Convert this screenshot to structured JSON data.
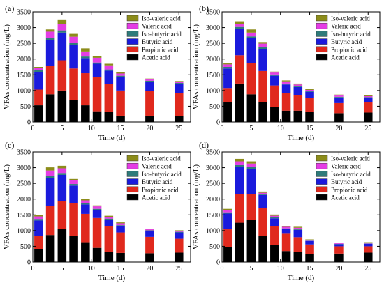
{
  "panels": [
    {
      "label": "(a)",
      "ylabel": "VFAs concentration (mg/L)",
      "xlabel": "Time (d)",
      "xticks": [
        "0",
        "5",
        "10",
        "15",
        "20",
        "25"
      ],
      "yticks": [
        "0",
        "500",
        "1000",
        "1500",
        "2000",
        "2500",
        "3000",
        "3500"
      ]
    },
    {
      "label": "(b)",
      "ylabel": "VFAs concentration (mg/L)",
      "xlabel": "Time (d)",
      "xticks": [
        "0",
        "5",
        "10",
        "15",
        "20",
        "25"
      ],
      "yticks": [
        "0",
        "500",
        "1000",
        "1500",
        "2000",
        "2500",
        "3000",
        "3500"
      ]
    },
    {
      "label": "(c)",
      "ylabel": "VFAs concentration (mg/L)",
      "xlabel": "Time (d)",
      "xticks": [
        "0",
        "5",
        "10",
        "15",
        "20",
        "25"
      ],
      "yticks": [
        "0",
        "500",
        "1000",
        "1500",
        "2000",
        "2500",
        "3000",
        "3500"
      ]
    },
    {
      "label": "(d)",
      "ylabel": "VFAs concentration (mg/L)",
      "xlabel": "Time (d)",
      "xticks": [
        "0",
        "5",
        "10",
        "15",
        "20",
        "25"
      ],
      "yticks": [
        "0",
        "500",
        "1000",
        "1500",
        "2000",
        "2500",
        "3000",
        "3500"
      ]
    }
  ],
  "chart_data": [
    {
      "type": "bar",
      "stacked": true,
      "xlim": [
        0,
        27
      ],
      "ylim": [
        0,
        3500
      ],
      "x": [
        1,
        3,
        5,
        7,
        9,
        11,
        13,
        15,
        20,
        25
      ],
      "series": [
        {
          "name": "Acetic acid",
          "color": "#000000",
          "values": [
            530,
            880,
            1000,
            700,
            530,
            340,
            330,
            200,
            200,
            190
          ]
        },
        {
          "name": "Propionic acid",
          "color": "#e0291d",
          "values": [
            500,
            900,
            960,
            1000,
            1020,
            1080,
            870,
            800,
            780,
            730
          ]
        },
        {
          "name": "Butyric acid",
          "color": "#1a1adc",
          "values": [
            560,
            820,
            880,
            750,
            480,
            430,
            430,
            430,
            300,
            290
          ]
        },
        {
          "name": "Iso-butyric acid",
          "color": "#2f7a7a",
          "values": [
            50,
            70,
            70,
            60,
            50,
            40,
            40,
            40,
            30,
            30
          ]
        },
        {
          "name": "Valeric acid",
          "color": "#e43de4",
          "values": [
            70,
            200,
            200,
            200,
            160,
            150,
            130,
            70,
            40,
            30
          ]
        },
        {
          "name": "Iso-valeric acid",
          "color": "#8c8c1a",
          "values": [
            40,
            70,
            150,
            90,
            100,
            60,
            50,
            40,
            30,
            30
          ]
        }
      ],
      "legend": "top-right"
    },
    {
      "type": "bar",
      "stacked": true,
      "xlim": [
        0,
        27
      ],
      "ylim": [
        0,
        3500
      ],
      "x": [
        1,
        3,
        5,
        7,
        9,
        11,
        13,
        15,
        20,
        25
      ],
      "series": [
        {
          "name": "Acetic acid",
          "color": "#000000",
          "values": [
            620,
            1220,
            880,
            640,
            480,
            360,
            360,
            330,
            280,
            300
          ]
        },
        {
          "name": "Propionic acid",
          "color": "#e0291d",
          "values": [
            460,
            900,
            1000,
            980,
            680,
            550,
            500,
            430,
            320,
            320
          ]
        },
        {
          "name": "Butyric acid",
          "color": "#1a1adc",
          "values": [
            620,
            840,
            780,
            700,
            310,
            280,
            250,
            200,
            180,
            150
          ]
        },
        {
          "name": "Iso-butyric acid",
          "color": "#2f7a7a",
          "values": [
            50,
            60,
            60,
            50,
            40,
            30,
            30,
            20,
            20,
            20
          ]
        },
        {
          "name": "Valeric acid",
          "color": "#e43de4",
          "values": [
            80,
            100,
            120,
            120,
            60,
            70,
            50,
            40,
            40,
            30
          ]
        },
        {
          "name": "Iso-valeric acid",
          "color": "#8c8c1a",
          "values": [
            30,
            80,
            100,
            50,
            30,
            30,
            30,
            30,
            30,
            30
          ]
        }
      ],
      "legend": "top-right"
    },
    {
      "type": "bar",
      "stacked": true,
      "xlim": [
        0,
        27
      ],
      "ylim": [
        0,
        3500
      ],
      "x": [
        1,
        3,
        5,
        7,
        9,
        11,
        13,
        15,
        20,
        25
      ],
      "series": [
        {
          "name": "Acetic acid",
          "color": "#000000",
          "values": [
            420,
            860,
            1050,
            820,
            630,
            450,
            330,
            290,
            280,
            300
          ]
        },
        {
          "name": "Propionic acid",
          "color": "#e0291d",
          "values": [
            420,
            920,
            880,
            1050,
            900,
            950,
            800,
            650,
            520,
            440
          ]
        },
        {
          "name": "Butyric acid",
          "color": "#1a1adc",
          "values": [
            480,
            900,
            840,
            560,
            300,
            250,
            210,
            200,
            190,
            200
          ]
        },
        {
          "name": "Iso-butyric acid",
          "color": "#2f7a7a",
          "values": [
            50,
            60,
            60,
            50,
            40,
            40,
            40,
            30,
            20,
            20
          ]
        },
        {
          "name": "Valeric acid",
          "color": "#e43de4",
          "values": [
            80,
            170,
            150,
            120,
            90,
            80,
            60,
            60,
            30,
            30
          ]
        },
        {
          "name": "Iso-valeric acid",
          "color": "#8c8c1a",
          "values": [
            50,
            100,
            80,
            40,
            40,
            30,
            30,
            30,
            20,
            20
          ]
        }
      ],
      "legend": "top-right"
    },
    {
      "type": "bar",
      "stacked": true,
      "xlim": [
        0,
        27
      ],
      "ylim": [
        0,
        3500
      ],
      "x": [
        1,
        3,
        5,
        7,
        9,
        11,
        13,
        15,
        20,
        25
      ],
      "series": [
        {
          "name": "Acetic acid",
          "color": "#000000",
          "values": [
            480,
            1250,
            1330,
            840,
            550,
            350,
            320,
            260,
            270,
            300
          ]
        },
        {
          "name": "Propionic acid",
          "color": "#e0291d",
          "values": [
            560,
            900,
            830,
            870,
            600,
            550,
            470,
            300,
            230,
            200
          ]
        },
        {
          "name": "Butyric acid",
          "color": "#1a1adc",
          "values": [
            500,
            870,
            800,
            420,
            240,
            150,
            230,
            110,
            70,
            80
          ]
        },
        {
          "name": "Iso-butyric acid",
          "color": "#2f7a7a",
          "values": [
            40,
            60,
            60,
            30,
            30,
            20,
            20,
            10,
            10,
            10
          ]
        },
        {
          "name": "Valeric acid",
          "color": "#e43de4",
          "values": [
            70,
            120,
            110,
            40,
            50,
            50,
            50,
            20,
            20,
            20
          ]
        },
        {
          "name": "Iso-valeric acid",
          "color": "#8c8c1a",
          "values": [
            40,
            80,
            70,
            40,
            40,
            30,
            30,
            20,
            20,
            20
          ]
        }
      ],
      "legend": "top-right"
    }
  ]
}
